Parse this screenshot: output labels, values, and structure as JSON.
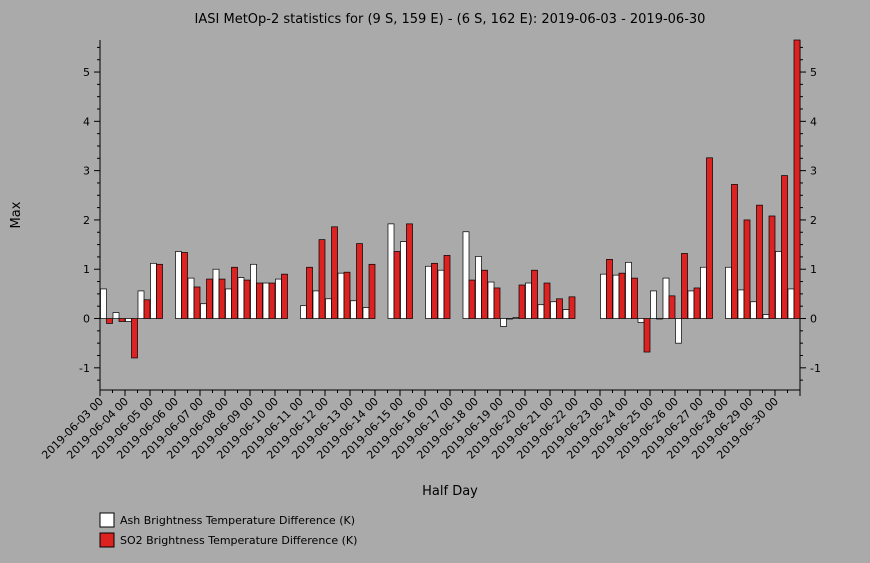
{
  "chart_data": {
    "type": "bar",
    "title": "IASI MetOp-2 statistics for (9 S, 159 E) - (6 S, 162 E): 2019-06-03 - 2019-06-30",
    "xlabel": "Half Day",
    "ylabel": "Max",
    "ylim": [
      -1.45,
      5.65
    ],
    "yticks": [
      -1,
      0,
      1,
      2,
      3,
      4,
      5
    ],
    "grid": false,
    "legend_position": "bottom-left",
    "x_tick_labels": [
      "2019-06-03 00",
      "2019-06-04 00",
      "2019-06-05 00",
      "2019-06-06 00",
      "2019-06-07 00",
      "2019-06-08 00",
      "2019-06-09 00",
      "2019-06-10 00",
      "2019-06-11 00",
      "2019-06-12 00",
      "2019-06-13 00",
      "2019-06-14 00",
      "2019-06-15 00",
      "2019-06-16 00",
      "2019-06-17 00",
      "2019-06-18 00",
      "2019-06-19 00",
      "2019-06-20 00",
      "2019-06-21 00",
      "2019-06-22 00",
      "2019-06-23 00",
      "2019-06-24 00",
      "2019-06-25 00",
      "2019-06-26 00",
      "2019-06-27 00",
      "2019-06-28 00",
      "2019-06-29 00",
      "2019-06-30 00"
    ],
    "series": [
      {
        "name": "Ash Brightness Temperature Difference (K)",
        "color": "#ffffff",
        "values": [
          0.6,
          0.12,
          -0.06,
          0.56,
          1.12,
          null,
          1.36,
          0.82,
          0.3,
          1.0,
          0.6,
          0.83,
          1.1,
          0.72,
          0.8,
          null,
          0.26,
          0.56,
          0.4,
          0.92,
          0.36,
          0.22,
          null,
          1.92,
          1.56,
          null,
          1.06,
          0.98,
          null,
          1.76,
          1.26,
          0.74,
          -0.16,
          0.02,
          0.72,
          0.28,
          0.34,
          0.18,
          null,
          null,
          0.9,
          0.88,
          1.14,
          -0.08,
          0.56,
          0.82,
          -0.5,
          0.56,
          1.04,
          null,
          1.04,
          0.58,
          0.34,
          0.08,
          1.36,
          0.6
        ]
      },
      {
        "name": "SO2 Brightness Temperature Difference (K)",
        "color": "#dd2222",
        "values": [
          -0.1,
          -0.06,
          -0.8,
          0.38,
          1.1,
          null,
          1.34,
          0.64,
          0.8,
          0.8,
          1.04,
          0.78,
          0.72,
          0.72,
          0.9,
          null,
          1.04,
          1.6,
          1.86,
          0.94,
          1.52,
          1.1,
          null,
          1.36,
          1.92,
          null,
          1.12,
          1.28,
          null,
          0.78,
          0.98,
          0.62,
          0.0,
          0.68,
          0.98,
          0.72,
          0.4,
          0.44,
          null,
          null,
          1.2,
          0.92,
          0.82,
          -0.68,
          0.0,
          0.46,
          1.32,
          0.62,
          3.26,
          null,
          2.72,
          2.0,
          2.3,
          2.08,
          2.9,
          5.65
        ]
      }
    ]
  }
}
